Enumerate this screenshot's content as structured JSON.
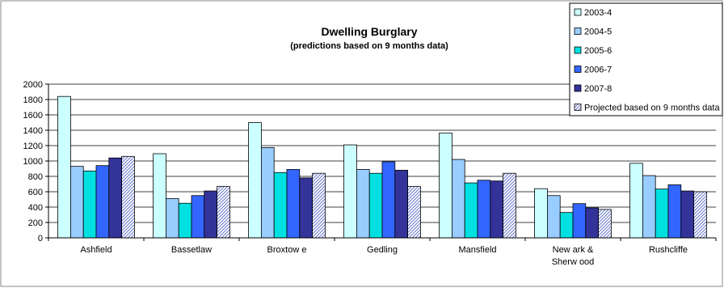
{
  "chart_data": {
    "type": "bar",
    "title": "Dwelling Burglary",
    "subtitle": "(predictions based on 9 months data)",
    "xlabel": "",
    "ylabel": "",
    "ylim": [
      0,
      2000
    ],
    "yticks": [
      0,
      200,
      400,
      600,
      800,
      1000,
      1200,
      1400,
      1600,
      1800,
      2000
    ],
    "grid": true,
    "legend_position": "top-right",
    "categories": [
      "Ashfield",
      "Bassetlaw",
      "Broxtow e",
      "Gedling",
      "Mansfield",
      [
        "New ark &",
        "Sherw ood"
      ],
      "Rushcliffe"
    ],
    "series": [
      {
        "name": "2003-4",
        "color": "#ccffff",
        "values": [
          1840,
          1095,
          1500,
          1210,
          1365,
          640,
          970
        ]
      },
      {
        "name": "2004-5",
        "color": "#99ccff",
        "values": [
          930,
          510,
          1175,
          890,
          1020,
          550,
          810
        ]
      },
      {
        "name": "2005-6",
        "color": "#00e0e0",
        "values": [
          870,
          450,
          850,
          840,
          715,
          330,
          635
        ]
      },
      {
        "name": "2006-7",
        "color": "#3366ff",
        "values": [
          940,
          550,
          890,
          990,
          750,
          445,
          690
        ]
      },
      {
        "name": "2007-8",
        "color": "#333399",
        "values": [
          1040,
          610,
          780,
          880,
          740,
          390,
          610
        ]
      },
      {
        "name": "Projected based on 9 months data",
        "color": "#99ccff",
        "pattern": "hatch",
        "values": [
          1060,
          670,
          840,
          670,
          840,
          370,
          600
        ]
      }
    ]
  }
}
